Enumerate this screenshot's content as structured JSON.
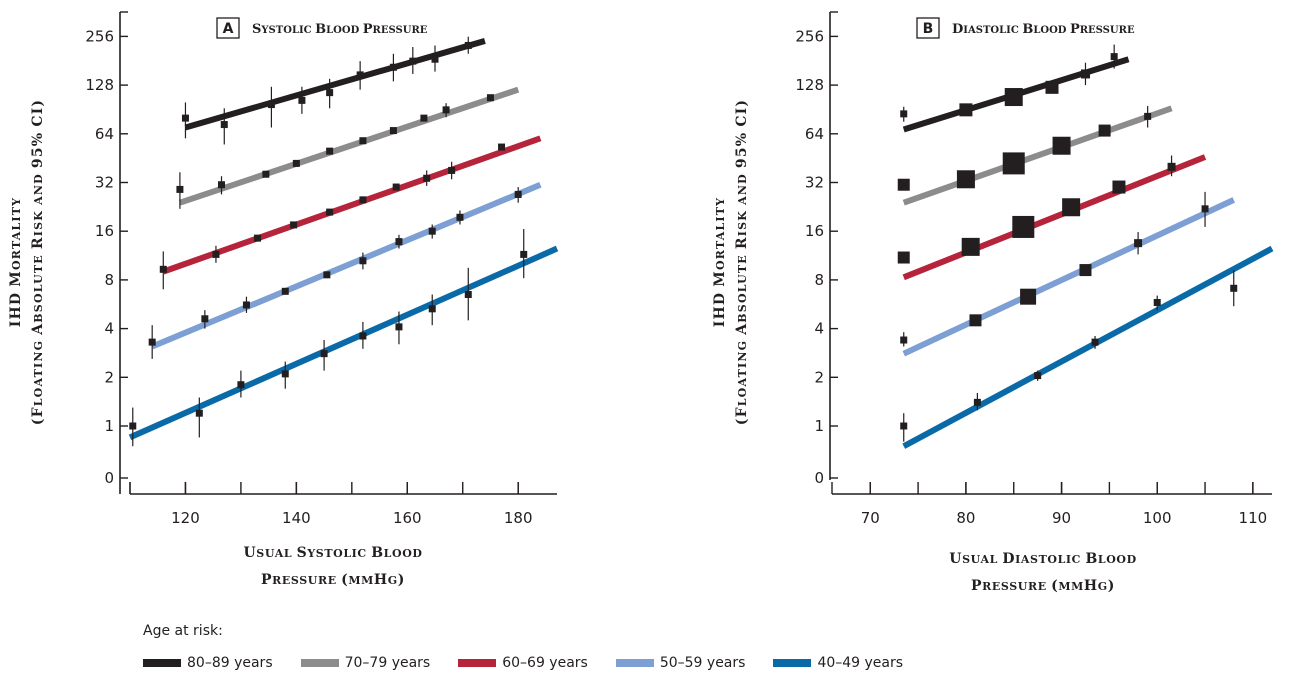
{
  "legend": {
    "title": "Age at risk:",
    "items": [
      {
        "label": "80–89 years",
        "color": "#231f20"
      },
      {
        "label": "70–79 years",
        "color": "#8c8c8c"
      },
      {
        "label": "60–69 years",
        "color": "#b5243a"
      },
      {
        "label": "50–59 years",
        "color": "#7d9fd3"
      },
      {
        "label": "40–49 years",
        "color": "#0a6aa8"
      }
    ]
  },
  "chart_data": [
    {
      "type": "scatter",
      "panel_letter": "A",
      "title": "Systolic Blood Pressure",
      "xlabel": [
        "Usual Systolic Blood",
        "Pressure (mmHg)"
      ],
      "ylabel": [
        "IHD Mortality",
        "(Floating Absolute Risk and 95% CI)"
      ],
      "xlim": [
        110,
        187
      ],
      "xticks": [
        120,
        140,
        160,
        180
      ],
      "yscale": "log2",
      "yticks": [
        "0",
        "1",
        "2",
        "4",
        "8",
        "16",
        "32",
        "64",
        "128",
        "256"
      ],
      "series": [
        {
          "name": "80–89 years",
          "color": "#231f20",
          "line": {
            "x": [
              120,
              174
            ],
            "y": [
              70,
              240
            ]
          },
          "points": [
            {
              "x": 120,
              "y": 80,
              "lo": 60,
              "hi": 100
            },
            {
              "x": 127,
              "y": 73,
              "lo": 55,
              "hi": 92
            },
            {
              "x": 135.5,
              "y": 97,
              "lo": 70,
              "hi": 125
            },
            {
              "x": 141,
              "y": 103,
              "lo": 85,
              "hi": 125
            },
            {
              "x": 146,
              "y": 115,
              "lo": 92,
              "hi": 140
            },
            {
              "x": 151.5,
              "y": 148,
              "lo": 120,
              "hi": 180
            },
            {
              "x": 157.5,
              "y": 165,
              "lo": 135,
              "hi": 200
            },
            {
              "x": 161,
              "y": 180,
              "lo": 150,
              "hi": 220
            },
            {
              "x": 165,
              "y": 185,
              "lo": 155,
              "hi": 225
            },
            {
              "x": 171,
              "y": 225,
              "lo": 200,
              "hi": 255
            }
          ]
        },
        {
          "name": "70–79 years",
          "color": "#8c8c8c",
          "line": {
            "x": [
              119,
              180
            ],
            "y": [
              24,
              120
            ]
          },
          "points": [
            {
              "x": 119,
              "y": 29,
              "lo": 22,
              "hi": 37
            },
            {
              "x": 126.5,
              "y": 31,
              "lo": 27,
              "hi": 35
            },
            {
              "x": 134.5,
              "y": 36
            },
            {
              "x": 140,
              "y": 42
            },
            {
              "x": 146,
              "y": 50
            },
            {
              "x": 152,
              "y": 58
            },
            {
              "x": 157.5,
              "y": 67
            },
            {
              "x": 163,
              "y": 80
            },
            {
              "x": 167,
              "y": 90,
              "lo": 81,
              "hi": 99
            },
            {
              "x": 175,
              "y": 107
            }
          ]
        },
        {
          "name": "60–69 years",
          "color": "#b5243a",
          "line": {
            "x": [
              116,
              184
            ],
            "y": [
              9,
              60
            ]
          },
          "points": [
            {
              "x": 116,
              "y": 9.3,
              "lo": 7,
              "hi": 12
            },
            {
              "x": 125.5,
              "y": 11.5,
              "lo": 10.2,
              "hi": 13
            },
            {
              "x": 133,
              "y": 14.5
            },
            {
              "x": 139.5,
              "y": 17.5
            },
            {
              "x": 146,
              "y": 21
            },
            {
              "x": 152,
              "y": 25
            },
            {
              "x": 158,
              "y": 30
            },
            {
              "x": 163.5,
              "y": 34,
              "lo": 30.5,
              "hi": 38
            },
            {
              "x": 168,
              "y": 38,
              "lo": 33.5,
              "hi": 43
            },
            {
              "x": 177,
              "y": 53
            }
          ]
        },
        {
          "name": "50–59 years",
          "color": "#7d9fd3",
          "line": {
            "x": [
              114,
              184
            ],
            "y": [
              3.1,
              31
            ]
          },
          "points": [
            {
              "x": 114,
              "y": 3.3,
              "lo": 2.6,
              "hi": 4.2
            },
            {
              "x": 123.5,
              "y": 4.6,
              "lo": 4,
              "hi": 5.2
            },
            {
              "x": 131,
              "y": 5.6,
              "lo": 5,
              "hi": 6.3
            },
            {
              "x": 138,
              "y": 6.8
            },
            {
              "x": 145.5,
              "y": 8.6
            },
            {
              "x": 152,
              "y": 10.5,
              "lo": 9.3,
              "hi": 11.8
            },
            {
              "x": 158.5,
              "y": 13.8,
              "lo": 12.5,
              "hi": 15.2
            },
            {
              "x": 164.5,
              "y": 16,
              "lo": 14.4,
              "hi": 17.6
            },
            {
              "x": 169.5,
              "y": 19.5,
              "lo": 17.6,
              "hi": 21.5
            },
            {
              "x": 180,
              "y": 27,
              "lo": 24,
              "hi": 30
            }
          ]
        },
        {
          "name": "40–49 years",
          "color": "#0a6aa8",
          "line": {
            "x": [
              110,
              187
            ],
            "y": [
              0.85,
              12.5
            ]
          },
          "points": [
            {
              "x": 110.5,
              "y": 1,
              "lo": 0.75,
              "hi": 1.3
            },
            {
              "x": 122.5,
              "y": 1.2,
              "lo": 0.85,
              "hi": 1.5
            },
            {
              "x": 130,
              "y": 1.8,
              "lo": 1.5,
              "hi": 2.2
            },
            {
              "x": 138,
              "y": 2.1,
              "lo": 1.7,
              "hi": 2.5
            },
            {
              "x": 145,
              "y": 2.8,
              "lo": 2.2,
              "hi": 3.4
            },
            {
              "x": 152,
              "y": 3.6,
              "lo": 3,
              "hi": 4.4
            },
            {
              "x": 158.5,
              "y": 4.1,
              "lo": 3.2,
              "hi": 5.1
            },
            {
              "x": 164.5,
              "y": 5.3,
              "lo": 4.2,
              "hi": 6.5
            },
            {
              "x": 171,
              "y": 6.5,
              "lo": 4.5,
              "hi": 9.5
            },
            {
              "x": 181,
              "y": 11.5,
              "lo": 8.2,
              "hi": 16.5
            }
          ]
        }
      ]
    },
    {
      "type": "scatter",
      "panel_letter": "B",
      "title": "Diastolic Blood Pressure",
      "xlabel": [
        "Usual Diastolic Blood",
        "Pressure (mmHg)"
      ],
      "ylabel": [
        "IHD Mortality",
        "(Floating Absolute Risk and 95% CI)"
      ],
      "xlim": [
        66,
        112
      ],
      "xticks": [
        70,
        80,
        90,
        100,
        110
      ],
      "yscale": "log2",
      "yticks": [
        "0",
        "1",
        "2",
        "4",
        "8",
        "16",
        "32",
        "64",
        "128",
        "256"
      ],
      "note": "marker size proportional to precision",
      "series": [
        {
          "name": "80–89 years",
          "color": "#231f20",
          "line": {
            "x": [
              73.5,
              97
            ],
            "y": [
              68,
              185
            ]
          },
          "points": [
            {
              "x": 73.5,
              "y": 85,
              "lo": 76,
              "hi": 94,
              "size": 7
            },
            {
              "x": 80,
              "y": 90,
              "size": 13
            },
            {
              "x": 85,
              "y": 108,
              "size": 18
            },
            {
              "x": 89,
              "y": 124,
              "size": 13
            },
            {
              "x": 92.5,
              "y": 150,
              "lo": 128,
              "hi": 176,
              "size": 9
            },
            {
              "x": 95.5,
              "y": 192,
              "lo": 162,
              "hi": 228,
              "size": 7
            }
          ]
        },
        {
          "name": "70–79 years",
          "color": "#8c8c8c",
          "line": {
            "x": [
              73.5,
              101.5
            ],
            "y": [
              24,
              92
            ]
          },
          "points": [
            {
              "x": 73.5,
              "y": 31,
              "size": 12
            },
            {
              "x": 80,
              "y": 33.5,
              "size": 18
            },
            {
              "x": 85,
              "y": 42,
              "size": 22
            },
            {
              "x": 90,
              "y": 54,
              "size": 18
            },
            {
              "x": 94.5,
              "y": 67,
              "size": 12
            },
            {
              "x": 99,
              "y": 82,
              "lo": 70,
              "hi": 95,
              "size": 7
            }
          ]
        },
        {
          "name": "60–69 years",
          "color": "#b5243a",
          "line": {
            "x": [
              73.5,
              105
            ],
            "y": [
              8.3,
              46
            ]
          },
          "points": [
            {
              "x": 73.5,
              "y": 11,
              "size": 12
            },
            {
              "x": 80.5,
              "y": 12.8,
              "size": 18
            },
            {
              "x": 86,
              "y": 17,
              "size": 22
            },
            {
              "x": 91,
              "y": 22.5,
              "size": 18
            },
            {
              "x": 96,
              "y": 30,
              "size": 13
            },
            {
              "x": 101.5,
              "y": 40,
              "lo": 35,
              "hi": 47,
              "size": 8
            }
          ]
        },
        {
          "name": "50–59 years",
          "color": "#7d9fd3",
          "line": {
            "x": [
              73.5,
              108
            ],
            "y": [
              2.8,
              25
            ]
          },
          "points": [
            {
              "x": 73.5,
              "y": 3.4,
              "lo": 3.1,
              "hi": 3.8,
              "size": 7
            },
            {
              "x": 81,
              "y": 4.5,
              "size": 12
            },
            {
              "x": 86.5,
              "y": 6.3,
              "size": 16
            },
            {
              "x": 92.5,
              "y": 9.2,
              "size": 12
            },
            {
              "x": 98,
              "y": 13.5,
              "lo": 11.5,
              "hi": 15.8,
              "size": 8
            },
            {
              "x": 105,
              "y": 22,
              "lo": 17,
              "hi": 28,
              "size": 7
            }
          ]
        },
        {
          "name": "40–49 years",
          "color": "#0a6aa8",
          "line": {
            "x": [
              73.5,
              112
            ],
            "y": [
              0.75,
              12.5
            ]
          },
          "points": [
            {
              "x": 73.5,
              "y": 1,
              "lo": 0.8,
              "hi": 1.2,
              "size": 7
            },
            {
              "x": 81.2,
              "y": 1.4,
              "lo": 1.25,
              "hi": 1.6,
              "size": 7
            },
            {
              "x": 87.5,
              "y": 2.05,
              "lo": 1.9,
              "hi": 2.2,
              "size": 7
            },
            {
              "x": 93.5,
              "y": 3.3,
              "lo": 3,
              "hi": 3.6,
              "size": 7
            },
            {
              "x": 100,
              "y": 5.8,
              "lo": 5.2,
              "hi": 6.4,
              "size": 7
            },
            {
              "x": 108,
              "y": 7.1,
              "lo": 5.5,
              "hi": 9.2,
              "size": 7
            }
          ]
        }
      ]
    }
  ]
}
